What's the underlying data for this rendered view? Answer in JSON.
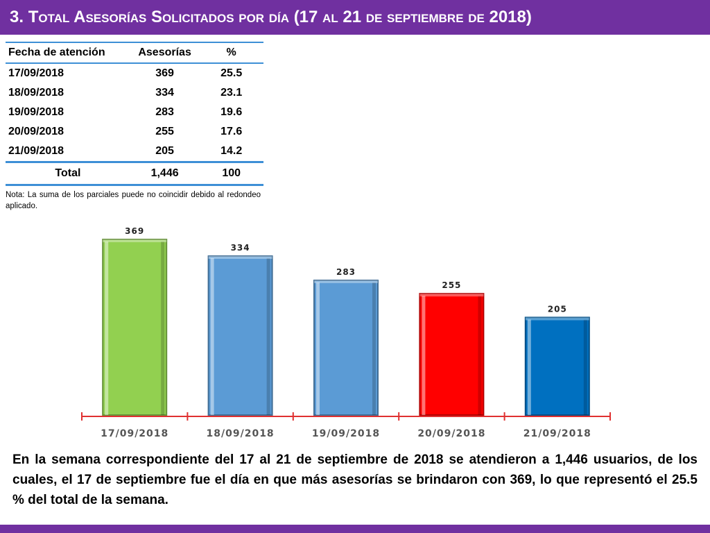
{
  "title": {
    "number": "3.",
    "text": "Total Asesorías Solicitados por día",
    "range": "(17 al 21 de septiembre de 2018)"
  },
  "table": {
    "headers": [
      "Fecha de atención",
      "Asesorías",
      "%"
    ],
    "rows": [
      [
        "17/09/2018",
        "369",
        "25.5"
      ],
      [
        "18/09/2018",
        "334",
        "23.1"
      ],
      [
        "19/09/2018",
        "283",
        "19.6"
      ],
      [
        "20/09/2018",
        "255",
        "17.6"
      ],
      [
        "21/09/2018",
        "205",
        "14.2"
      ]
    ],
    "total": [
      "Total",
      "1,446",
      "100"
    ]
  },
  "note": "Nota: La suma de los parciales puede no coincidir debido al redondeo aplicado.",
  "chart_data": {
    "type": "bar",
    "categories": [
      "17/09/2018",
      "18/09/2018",
      "19/09/2018",
      "20/09/2018",
      "21/09/2018"
    ],
    "values": [
      369,
      334,
      283,
      255,
      205
    ],
    "data_labels": [
      "369",
      "334",
      "283",
      "255",
      "205"
    ],
    "colors": [
      "#92d050",
      "#5b9bd5",
      "#5b9bd5",
      "#ff0000",
      "#0070c0"
    ],
    "ylim": [
      0,
      369
    ],
    "grid": false,
    "legend": "none",
    "axis_color": "#e03030"
  },
  "paragraph": "En la semana correspondiente del 17 al 21 de septiembre de 2018 se atendieron a 1,446 usuarios, de los cuales, el 17 de septiembre fue el día en que más asesorías se brindaron con 369, lo que representó el 25.5 % del total de la semana.",
  "colors": {
    "accent": "#7030a0",
    "table_rule": "#3d8fd6"
  }
}
